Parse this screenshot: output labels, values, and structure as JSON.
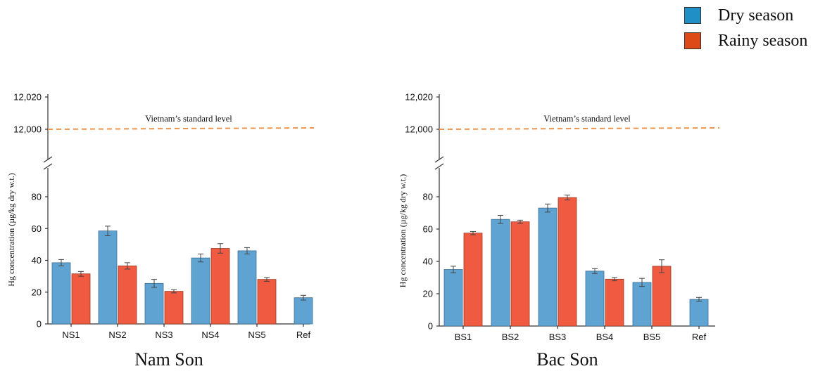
{
  "legend": {
    "items": [
      {
        "label": "Dry season",
        "color": "#1f8fc6"
      },
      {
        "label": "Rainy season",
        "color": "#dd4a17"
      }
    ]
  },
  "colors": {
    "dry_bar": "#5ea3d2",
    "rainy_bar": "#f05a40",
    "standard_line": "#f0944a"
  },
  "chart_data": [
    {
      "type": "bar",
      "title": "Nam Son",
      "ylabel": "Hg concentration (µg/kg dry w.t.)",
      "categories": [
        "NS1",
        "NS2",
        "NS3",
        "NS4",
        "NS5",
        "Ref"
      ],
      "series": [
        {
          "name": "Dry season",
          "values": [
            38.5,
            58.5,
            25.5,
            41.5,
            46,
            16.5
          ],
          "errors": [
            2,
            3,
            2.5,
            2.5,
            2,
            1.5
          ]
        },
        {
          "name": "Rainy season",
          "values": [
            31.5,
            36.5,
            20.5,
            47.5,
            28,
            null
          ],
          "errors": [
            1.5,
            2,
            1,
            3,
            1.2,
            null
          ]
        }
      ],
      "ylim_lower": [
        0,
        95
      ],
      "ylim_upper": [
        11990,
        12020
      ],
      "y_ticks": [
        "0",
        "20",
        "40",
        "60",
        "80",
        "12,000",
        "12,020"
      ],
      "axis_break": true,
      "reference_line": {
        "label": "Vietnam’s standard level",
        "value": 12000
      }
    },
    {
      "type": "bar",
      "title": "Bac Son",
      "ylabel": "Hg concentration (µg/kg dry w.t.)",
      "categories": [
        "BS1",
        "BS2",
        "BS3",
        "BS4",
        "BS5",
        "Ref"
      ],
      "series": [
        {
          "name": "Dry season",
          "values": [
            35,
            66,
            73,
            34,
            27,
            16.5
          ],
          "errors": [
            2,
            2.5,
            2.5,
            1.5,
            2.5,
            1.2
          ]
        },
        {
          "name": "Rainy season",
          "values": [
            57.5,
            64.5,
            79.5,
            29,
            37,
            null
          ],
          "errors": [
            1,
            1,
            1.5,
            1,
            4,
            null
          ]
        }
      ],
      "ylim_lower": [
        0,
        95
      ],
      "ylim_upper": [
        11990,
        12020
      ],
      "y_ticks": [
        "0",
        "20",
        "40",
        "60",
        "80",
        "12,000",
        "12,020"
      ],
      "axis_break": true,
      "reference_line": {
        "label": "Vietnam’s standard level",
        "value": 12000
      }
    }
  ]
}
